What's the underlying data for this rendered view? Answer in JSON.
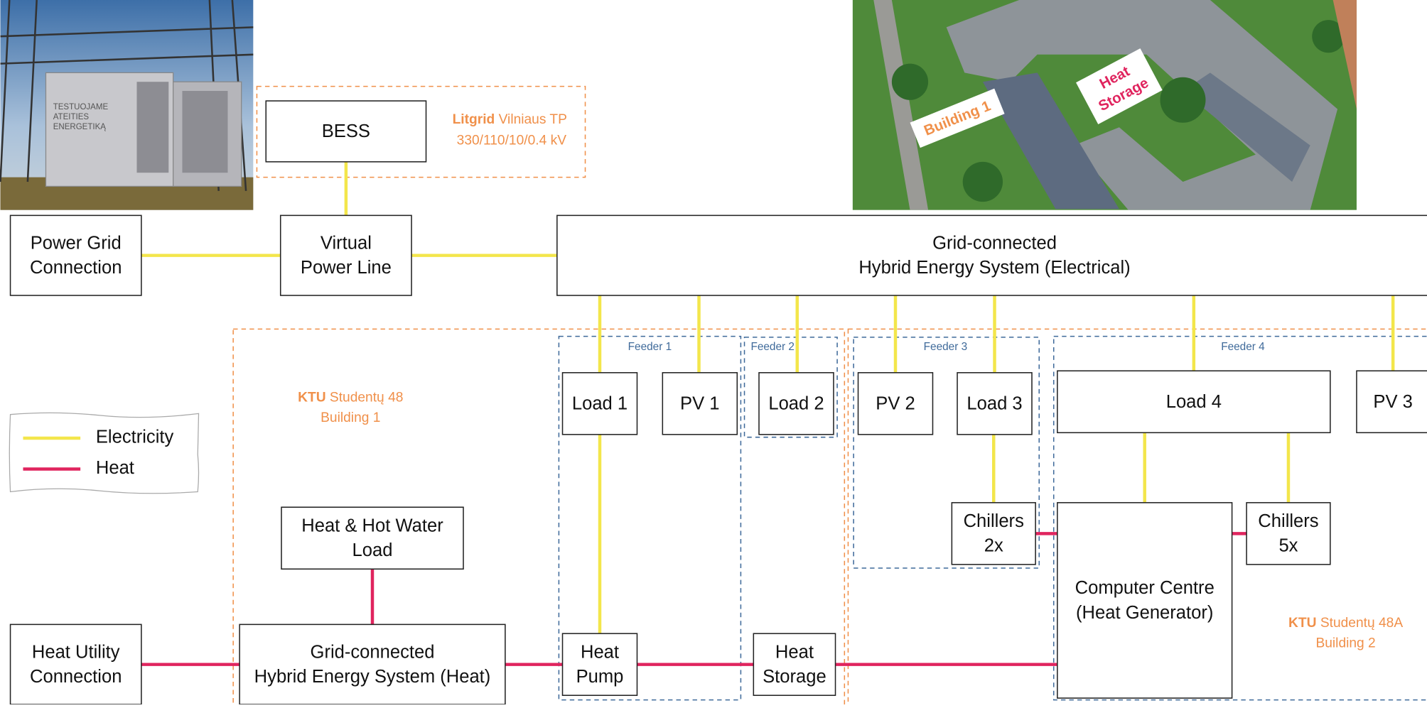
{
  "photos": {
    "bess_photo_text": [
      "TESTUOJAME",
      "ATEITIES",
      "ENERGETIKĄ"
    ],
    "aerial_building": "Building 1",
    "aerial_heat_storage": [
      "Heat",
      "Storage"
    ]
  },
  "regions": {
    "litgrid": {
      "bold": "Litgrid",
      "text": "Vilniaus TP",
      "line2": "330/110/10/0.4 kV"
    },
    "building1": {
      "bold": "KTU",
      "text": "Studentų 48",
      "line2": "Building 1"
    },
    "building2": {
      "bold": "KTU",
      "text": "Studentų 48A",
      "line2": "Building 2"
    }
  },
  "feeders": [
    "Feeder 1",
    "Feeder 2",
    "Feeder 3",
    "Feeder 4"
  ],
  "legend": [
    "Electricity",
    "Heat"
  ],
  "nodes": [
    {
      "label": [
        "BESS"
      ]
    },
    {
      "label": [
        "Power Grid",
        "Connection"
      ]
    },
    {
      "label": [
        "Virtual",
        "Power Line"
      ]
    },
    {
      "label": [
        "Grid-connected",
        "Hybrid Energy System (Electrical)"
      ]
    },
    {
      "label": [
        "Load 1"
      ]
    },
    {
      "label": [
        "PV 1"
      ]
    },
    {
      "label": [
        "Load 2"
      ]
    },
    {
      "label": [
        "PV 2"
      ]
    },
    {
      "label": [
        "Load 3"
      ]
    },
    {
      "label": [
        "Load 4"
      ]
    },
    {
      "label": [
        "PV 3"
      ]
    },
    {
      "label": [
        "Heat & Hot Water",
        "Load"
      ]
    },
    {
      "label": [
        "Chillers",
        "2x"
      ]
    },
    {
      "label": [
        "Chillers",
        "5x"
      ]
    },
    {
      "label": [
        "Computer Centre",
        "(Heat Generator)"
      ]
    },
    {
      "label": [
        "Heat Utility",
        "Connection"
      ]
    },
    {
      "label": [
        "Grid-connected",
        "Hybrid Energy System (Heat)"
      ]
    },
    {
      "label": [
        "Heat",
        "Pump"
      ]
    },
    {
      "label": [
        "Heat",
        "Storage"
      ]
    }
  ]
}
